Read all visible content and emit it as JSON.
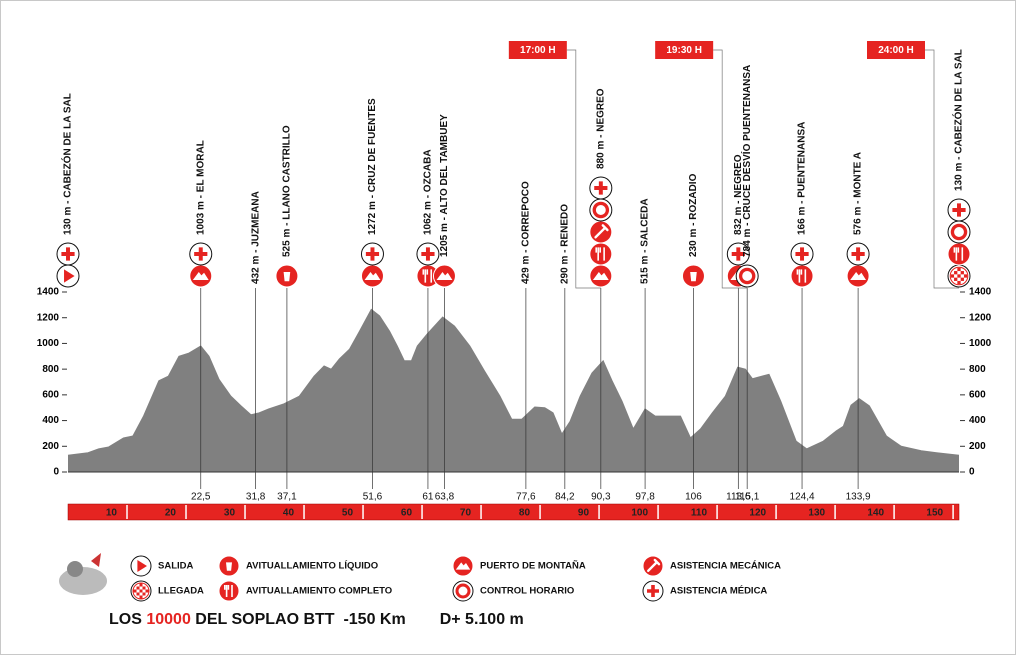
{
  "chart_data": {
    "type": "area",
    "x": [
      0,
      3.4,
      5.2,
      6.9,
      9.4,
      11,
      12.8,
      15.4,
      17,
      18.8,
      20.5,
      22.5,
      23.9,
      25.6,
      27.6,
      29.3,
      31,
      32.4,
      34,
      36.6,
      39.2,
      41.7,
      43.4,
      44.6,
      46,
      47.7,
      49.4,
      51.4,
      52.8,
      54.5,
      55.8,
      57,
      58.2,
      59.2,
      60.9,
      63.5,
      65.5,
      68.1,
      70.6,
      73.2,
      75.2,
      76.9,
      79.1,
      80.8,
      82.2,
      83.7,
      85.1,
      86.8,
      88.8,
      90.7,
      92.2,
      93.9,
      95.8,
      97.8,
      99.5,
      103.8,
      105.5,
      107.2,
      109.2,
      111.4,
      113.5,
      114.8,
      116,
      118.8,
      120.8,
      123.4,
      125.2,
      128,
      130.2,
      131.4,
      132.7,
      134.1,
      135.8,
      138.7,
      141.2,
      144.6,
      147.2,
      151
    ],
    "values": [
      130,
      150,
      180,
      195,
      265,
      280,
      435,
      710,
      745,
      900,
      925,
      980,
      900,
      720,
      590,
      515,
      445,
      460,
      490,
      530,
      590,
      745,
      825,
      800,
      880,
      955,
      1095,
      1265,
      1215,
      1095,
      980,
      865,
      865,
      980,
      1075,
      1205,
      1135,
      980,
      785,
      590,
      410,
      410,
      505,
      500,
      460,
      295,
      395,
      590,
      770,
      865,
      710,
      550,
      335,
      490,
      435,
      435,
      265,
      335,
      460,
      590,
      815,
      800,
      725,
      760,
      550,
      240,
      180,
      240,
      320,
      355,
      520,
      570,
      515,
      280,
      200,
      165,
      150,
      130
    ],
    "color": "#808080",
    "xlim": [
      0,
      151
    ],
    "ylim": [
      0,
      1400
    ],
    "yticks": [
      0,
      200,
      400,
      600,
      800,
      1000,
      1200,
      1400
    ],
    "xticks": [
      10,
      20,
      30,
      40,
      50,
      60,
      70,
      80,
      90,
      100,
      110,
      120,
      130,
      140,
      150
    ],
    "waypoints": [
      {
        "label": "130 m - CABEZÓN DE LA SAL",
        "icons": [
          0,
          7
        ]
      },
      {
        "label": "1003 m - EL MORAL",
        "km": {
          "value": 22.5,
          "label": "22,5"
        },
        "icons": [
          4,
          7
        ]
      },
      {
        "label": "432 m - JUZMEANA",
        "km": {
          "value": 31.8,
          "label": "31,8"
        },
        "icons": []
      },
      {
        "label": "525 m - LLANO CASTRILLO",
        "km": {
          "value": 37.1,
          "label": "37,1"
        },
        "icons": [
          2
        ]
      },
      {
        "label": "1272 m - CRUZ DE FUENTES",
        "km": {
          "value": 51.6,
          "label": "51,6"
        },
        "icons": [
          4,
          7
        ]
      },
      {
        "label": "1062 m - OZCABA",
        "km": 61,
        "icons": [
          3,
          7
        ]
      },
      {
        "label": "1205 m - ALTO DEL TAMBUEY",
        "km": {
          "value": 63.8,
          "label": "63,8"
        },
        "icons": [
          4
        ]
      },
      {
        "label": "429 m - CORREPOCO",
        "km": {
          "value": 77.6,
          "label": "77,6"
        },
        "icons": []
      },
      {
        "label": "290 m - RENEDO",
        "km": {
          "value": 84.2,
          "label": "84,2"
        },
        "icons": []
      },
      {
        "label": "880 m - NEGREO",
        "km": {
          "value": 90.3,
          "label": "90,3"
        },
        "icons": [
          4,
          3,
          6,
          5,
          7
        ],
        "time": "17:00 H"
      },
      {
        "label": "515 m - SALCEDA",
        "km": {
          "value": 97.8,
          "label": "97,8"
        },
        "icons": []
      },
      {
        "label": "230 m - ROZADIO",
        "km": 106,
        "icons": [
          2
        ]
      },
      {
        "label": "832 m - NEGREO",
        "km": {
          "value": 113.6,
          "label": "113,6"
        },
        "icons": [
          4,
          7
        ]
      },
      {
        "label": "784 m - CRUCE DESVÍO PUENTENANSA",
        "km": {
          "value": 115.1,
          "label": "115,1"
        },
        "icons": [
          5
        ],
        "time": "19:30 H"
      },
      {
        "label": "166 m - PUENTENANSA",
        "km": {
          "value": 124.4,
          "label": "124,4"
        },
        "icons": [
          3,
          7
        ]
      },
      {
        "label": "576 m - MONTE A",
        "km": {
          "value": 133.9,
          "label": "133,9"
        },
        "icons": [
          4,
          7
        ]
      },
      {
        "label": "130 m - CABEZÓN DE LA SAL",
        "icons": [
          1,
          3,
          5,
          7
        ],
        "time": "24:00 H"
      }
    ],
    "legend": [
      "SALIDA",
      "LLEGADA",
      "AVITUALLAMIENTO LÍQUIDO",
      "AVITUALLAMIENTO COMPLETO",
      "PUERTO DE MONTAÑA",
      "CONTROL HORARIO",
      "ASISTENCIA MECÁNICA",
      "ASISTENCIA MÉDICA"
    ],
    "title_parts": [
      "LOS ",
      "10000",
      " DEL SOPLAO BTT  -150 Km"
    ],
    "elevation_gain": "D+ 5.100 m"
  }
}
